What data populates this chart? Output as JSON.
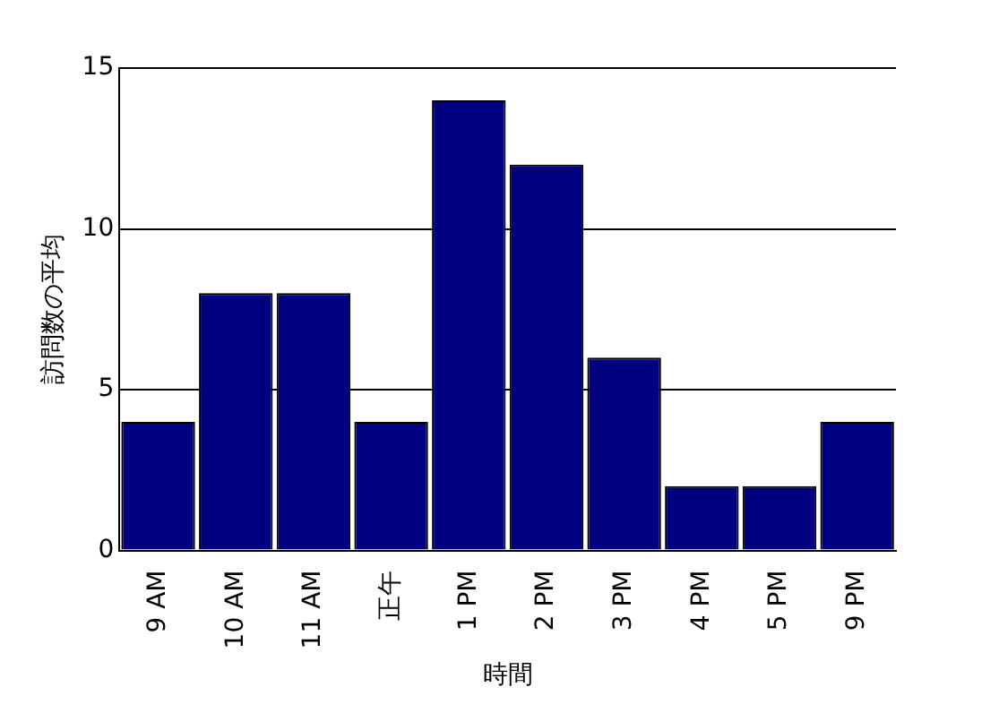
{
  "chart_data": {
    "type": "bar",
    "xlabel": "時間",
    "ylabel": "訪問数の平均",
    "categories": [
      "9 AM",
      "10 AM",
      "11 AM",
      "正午",
      "1 PM",
      "2 PM",
      "3 PM",
      "4 PM",
      "5 PM",
      "9 PM"
    ],
    "values": [
      4,
      8,
      8,
      4,
      14,
      12,
      6,
      2,
      2,
      4
    ],
    "color": "#000080",
    "ylim": [
      0,
      15
    ],
    "yticks": [
      0,
      5,
      10,
      15
    ],
    "grid": "y",
    "legend": false
  }
}
